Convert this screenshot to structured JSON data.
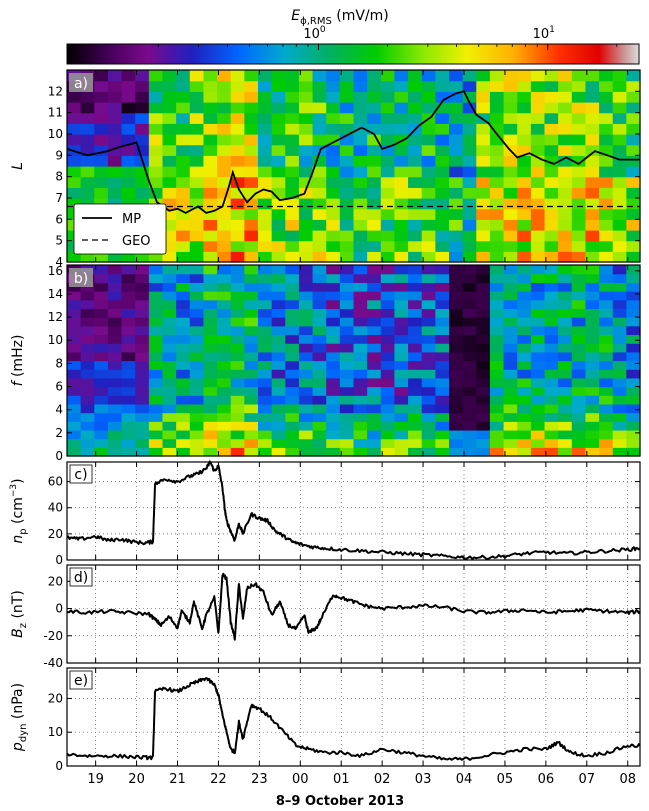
{
  "colorbar": {
    "label": "E_φ,RMS (mV/m)",
    "label_main": "E",
    "label_sub": "ϕ,RMS",
    "label_unit": " (mV/m)",
    "tick_labels": [
      {
        "base": "10",
        "exp": "0",
        "value": 1
      },
      {
        "base": "10",
        "exp": "1",
        "value": 10
      }
    ],
    "range": [
      0.08,
      25
    ],
    "scale": "log"
  },
  "xaxis": {
    "label": "8–9 October 2013",
    "range_hours": [
      18.3,
      32.3
    ],
    "tick_labels": [
      "19",
      "20",
      "21",
      "22",
      "23",
      "00",
      "01",
      "02",
      "03",
      "04",
      "05",
      "06",
      "07",
      "08"
    ],
    "tick_hours": [
      19,
      20,
      21,
      22,
      23,
      24,
      25,
      26,
      27,
      28,
      29,
      30,
      31,
      32
    ]
  },
  "chart_data": [
    {
      "id": "a",
      "panel_label": "a)",
      "type": "heatmap",
      "ylabel": "L",
      "ylim": [
        4,
        13
      ],
      "yticks": [
        4,
        5,
        6,
        7,
        8,
        9,
        10,
        11,
        12
      ],
      "legend": {
        "placement": "lower-left",
        "entries": [
          "MP",
          "GEO"
        ]
      },
      "series": [
        {
          "name": "MP",
          "style": "solid",
          "x": [
            18.3,
            18.8,
            19.3,
            19.6,
            20.0,
            20.3,
            20.5,
            20.8,
            21.0,
            21.2,
            21.5,
            21.7,
            21.9,
            22.1,
            22.25,
            22.35,
            22.5,
            22.7,
            22.9,
            23.1,
            23.3,
            23.5,
            23.8,
            24.1,
            24.3,
            24.5,
            24.8,
            25.0,
            25.2,
            25.5,
            25.8,
            26.0,
            26.3,
            26.6,
            26.9,
            27.2,
            27.5,
            27.8,
            28.0,
            28.1,
            28.3,
            28.6,
            28.8,
            29.1,
            29.3,
            29.6,
            29.9,
            30.2,
            30.5,
            30.8,
            31.0,
            31.2,
            31.5,
            31.8,
            32.0,
            32.3
          ],
          "y": [
            9.3,
            9.0,
            9.2,
            9.4,
            9.6,
            7.8,
            6.8,
            6.4,
            6.5,
            6.3,
            6.6,
            6.3,
            6.4,
            6.6,
            7.5,
            8.2,
            7.4,
            6.8,
            7.2,
            7.4,
            7.3,
            6.9,
            7.0,
            7.2,
            8.2,
            9.3,
            9.6,
            9.8,
            10.0,
            10.3,
            10.0,
            9.3,
            9.5,
            9.8,
            10.4,
            10.8,
            11.6,
            11.9,
            12.0,
            11.6,
            10.9,
            10.5,
            10.0,
            9.3,
            8.9,
            9.1,
            8.8,
            8.6,
            8.9,
            8.6,
            8.9,
            9.2,
            9.0,
            8.8,
            8.8,
            8.8
          ]
        },
        {
          "name": "GEO",
          "style": "dashed",
          "x": [
            18.3,
            32.3
          ],
          "y": [
            6.6,
            6.6
          ]
        }
      ]
    },
    {
      "id": "b",
      "panel_label": "b)",
      "type": "heatmap",
      "ylabel": "f (mHz)",
      "ylim": [
        0,
        16.5
      ],
      "yticks": [
        0,
        2,
        4,
        6,
        8,
        10,
        12,
        14,
        16
      ]
    },
    {
      "id": "c",
      "panel_label": "c)",
      "type": "line",
      "ylabel": "n_p (cm^-3)",
      "ylim": [
        0,
        75
      ],
      "yticks": [
        0,
        20,
        40,
        60
      ],
      "series": [
        {
          "x": [
            18.3,
            18.6,
            19.0,
            19.3,
            19.6,
            19.9,
            20.2,
            20.4,
            20.45,
            20.7,
            21.0,
            21.3,
            21.5,
            21.7,
            21.8,
            21.9,
            22.0,
            22.1,
            22.15,
            22.2,
            22.3,
            22.4,
            22.5,
            22.6,
            22.8,
            23.0,
            23.2,
            23.4,
            23.6,
            23.8,
            24.0,
            24.3,
            24.6,
            25.0,
            25.5,
            26.0,
            26.5,
            27.0,
            27.5,
            28.0,
            28.5,
            29.0,
            29.5,
            30.0,
            30.5,
            31.0,
            31.5,
            32.0,
            32.3
          ],
          "y": [
            17,
            16,
            18,
            15,
            16,
            14,
            13,
            14,
            58,
            62,
            60,
            64,
            66,
            70,
            75,
            68,
            72,
            55,
            40,
            30,
            22,
            15,
            28,
            20,
            35,
            32,
            30,
            22,
            18,
            14,
            12,
            10,
            9,
            8,
            7,
            6,
            5,
            4,
            3,
            2,
            2,
            3,
            5,
            6,
            5,
            6,
            7,
            8,
            9
          ]
        }
      ]
    },
    {
      "id": "d",
      "panel_label": "d)",
      "type": "line",
      "ylabel": "B_z (nT)",
      "ylim": [
        -40,
        32
      ],
      "yticks": [
        -40,
        -20,
        0,
        20
      ],
      "series": [
        {
          "x": [
            18.3,
            18.8,
            19.3,
            19.8,
            20.3,
            20.45,
            20.6,
            20.8,
            21.0,
            21.1,
            21.3,
            21.4,
            21.6,
            21.7,
            21.9,
            22.0,
            22.1,
            22.2,
            22.3,
            22.4,
            22.5,
            22.6,
            22.7,
            22.9,
            23.1,
            23.3,
            23.5,
            23.7,
            23.9,
            24.1,
            24.2,
            24.4,
            24.5,
            24.8,
            25.0,
            25.3,
            25.6,
            26.0,
            26.5,
            27.0,
            27.5,
            28.0,
            28.5,
            29.0,
            29.5,
            30.0,
            30.5,
            31.0,
            31.5,
            32.0,
            32.3
          ],
          "y": [
            -2,
            -3,
            -2,
            -3,
            -4,
            -8,
            -12,
            -6,
            -14,
            -2,
            -10,
            5,
            -15,
            -5,
            8,
            -18,
            25,
            22,
            -10,
            -22,
            18,
            -8,
            15,
            18,
            12,
            -5,
            5,
            -12,
            -15,
            -5,
            -18,
            -14,
            -8,
            10,
            8,
            5,
            2,
            0,
            1,
            2,
            1,
            -2,
            -3,
            -2,
            -1,
            -3,
            -2,
            -1,
            -2,
            -3,
            -2
          ]
        }
      ]
    },
    {
      "id": "e",
      "panel_label": "e)",
      "type": "line",
      "ylabel": "p_dyn (nPa)",
      "ylim": [
        0,
        29
      ],
      "yticks": [
        0,
        10,
        20
      ],
      "series": [
        {
          "x": [
            18.3,
            18.8,
            19.3,
            19.8,
            20.2,
            20.4,
            20.45,
            20.7,
            21.0,
            21.3,
            21.5,
            21.7,
            21.9,
            22.0,
            22.1,
            22.2,
            22.3,
            22.4,
            22.5,
            22.6,
            22.8,
            23.0,
            23.3,
            23.6,
            23.9,
            24.2,
            24.6,
            25.0,
            25.5,
            26.0,
            26.5,
            27.0,
            27.5,
            28.0,
            28.5,
            29.0,
            29.5,
            30.0,
            30.3,
            30.6,
            31.0,
            31.5,
            32.0,
            32.3
          ],
          "y": [
            3.5,
            3,
            3,
            2.8,
            2.5,
            2.5,
            22,
            23,
            22,
            24,
            25,
            26,
            24,
            21,
            15,
            10,
            5,
            4,
            13,
            8,
            18,
            17,
            14,
            10,
            6,
            5,
            4,
            4,
            3,
            5,
            4,
            3,
            2,
            2,
            3,
            4,
            5,
            5,
            7,
            4,
            3,
            4,
            6,
            6
          ]
        }
      ]
    }
  ]
}
